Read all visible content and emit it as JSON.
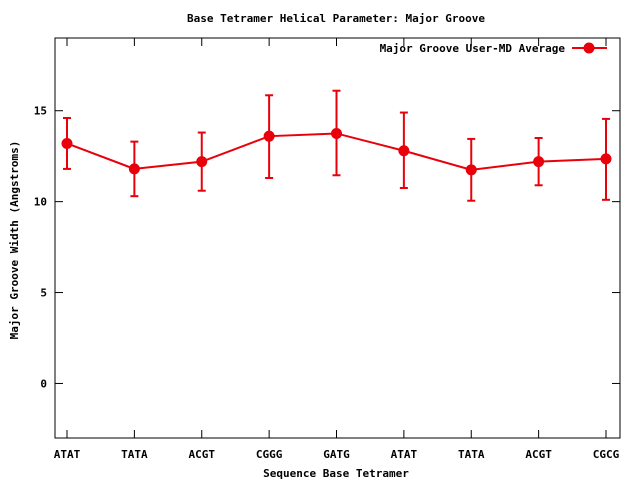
{
  "chart_data": {
    "type": "line",
    "title": "Base Tetramer Helical Parameter: Major Groove",
    "xlabel": "Sequence Base Tetramer",
    "ylabel": "Major Groove Width (Angstroms)",
    "categories": [
      "ATAT",
      "TATA",
      "ACGT",
      "CGGG",
      "GATG",
      "ATAT",
      "TATA",
      "ACGT",
      "CGCG"
    ],
    "ylim": [
      -3,
      19
    ],
    "yticks": [
      0,
      5,
      10,
      15
    ],
    "grid": false,
    "legend_position": "top-right",
    "series": [
      {
        "name": "Major Groove User-MD Average",
        "color": "#e8000b",
        "values": [
          13.2,
          11.8,
          12.2,
          13.6,
          13.75,
          12.8,
          11.75,
          12.2,
          12.35
        ],
        "error_low": [
          11.8,
          10.3,
          10.6,
          11.3,
          11.45,
          10.75,
          10.05,
          10.9,
          10.1
        ],
        "error_high": [
          14.6,
          13.3,
          13.8,
          15.85,
          16.1,
          14.9,
          13.45,
          13.5,
          14.55
        ]
      }
    ]
  }
}
